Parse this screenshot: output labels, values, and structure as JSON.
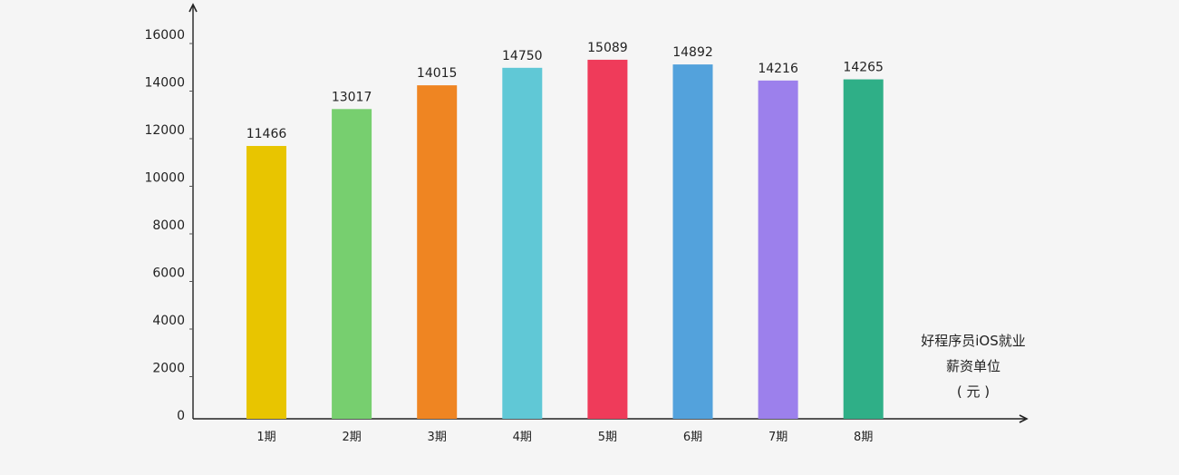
{
  "chart_data": {
    "type": "bar",
    "categories": [
      "1期",
      "2期",
      "3期",
      "4期",
      "5期",
      "6期",
      "7期",
      "8期"
    ],
    "values": [
      11466,
      13017,
      14015,
      14750,
      15089,
      14892,
      14216,
      14265
    ],
    "colors": [
      "#e8c500",
      "#77cf6f",
      "#ef8522",
      "#60c8d6",
      "#ef3b5a",
      "#53a2dc",
      "#9c80ec",
      "#2faf87"
    ],
    "y_ticks": [
      "0",
      "2000",
      "4000",
      "6000",
      "8000",
      "10000",
      "12000",
      "14000",
      "16000"
    ],
    "ylim": [
      0,
      16000
    ],
    "grid": false,
    "unit_label": [
      "好程序员iOS就业",
      "薪资单位",
      "( 元 )"
    ]
  }
}
